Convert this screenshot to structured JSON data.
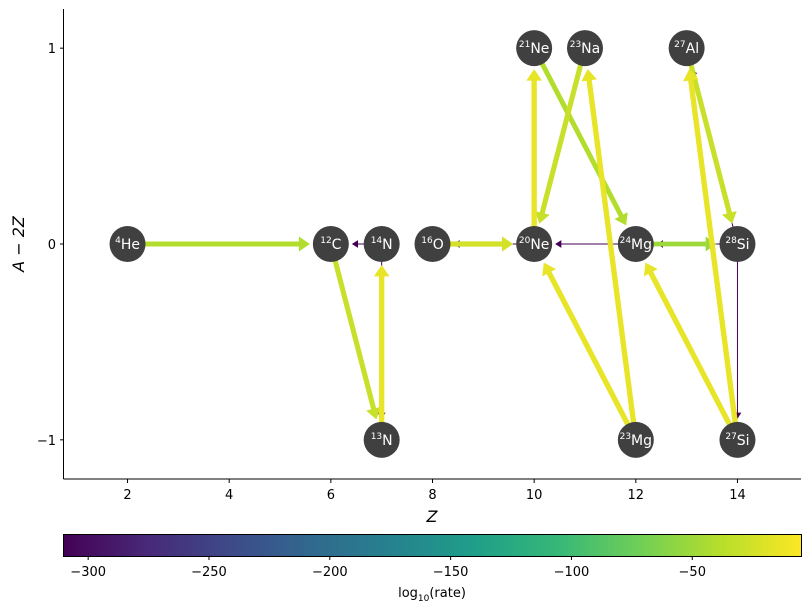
{
  "chart_data": {
    "type": "network",
    "xlabel": "Z",
    "ylabel": "A − 2Z",
    "xlim": [
      0.75,
      15.25
    ],
    "ylim": [
      -1.2,
      1.2
    ],
    "x_ticks": [
      2,
      4,
      6,
      8,
      10,
      12,
      14
    ],
    "y_ticks": [
      -1,
      0,
      1
    ],
    "x_tick_labels": [
      "2",
      "4",
      "6",
      "8",
      "10",
      "12",
      "14"
    ],
    "y_tick_labels": [
      "−1",
      "0",
      "1"
    ],
    "node_color": "#404040",
    "nodes": [
      {
        "id": "he4",
        "mass": "4",
        "sym": "He",
        "Z": 2,
        "y": 0
      },
      {
        "id": "c12",
        "mass": "12",
        "sym": "C",
        "Z": 6,
        "y": 0
      },
      {
        "id": "n14",
        "mass": "14",
        "sym": "N",
        "Z": 7,
        "y": 0
      },
      {
        "id": "n13",
        "mass": "13",
        "sym": "N",
        "Z": 7,
        "y": -1
      },
      {
        "id": "o16",
        "mass": "16",
        "sym": "O",
        "Z": 8,
        "y": 0
      },
      {
        "id": "ne20",
        "mass": "20",
        "sym": "Ne",
        "Z": 10,
        "y": 0
      },
      {
        "id": "ne21",
        "mass": "21",
        "sym": "Ne",
        "Z": 10,
        "y": 1
      },
      {
        "id": "na23",
        "mass": "23",
        "sym": "Na",
        "Z": 11,
        "y": 1
      },
      {
        "id": "mg24",
        "mass": "24",
        "sym": "Mg",
        "Z": 12,
        "y": 0
      },
      {
        "id": "mg23",
        "mass": "23",
        "sym": "Mg",
        "Z": 12,
        "y": -1
      },
      {
        "id": "al27",
        "mass": "27",
        "sym": "Al",
        "Z": 13,
        "y": 1
      },
      {
        "id": "si28",
        "mass": "28",
        "sym": "Si",
        "Z": 14,
        "y": 0
      },
      {
        "id": "si27",
        "mass": "27",
        "sym": "Si",
        "Z": 14,
        "y": -1
      }
    ],
    "links": [
      {
        "from": "he4",
        "to": "c12",
        "log10_rate": -40
      },
      {
        "from": "c12",
        "to": "n13",
        "log10_rate": -30
      },
      {
        "from": "n13",
        "to": "n14",
        "log10_rate": -15
      },
      {
        "from": "n14",
        "to": "n13",
        "log10_rate": -310
      },
      {
        "from": "n14",
        "to": "c12",
        "log10_rate": -310
      },
      {
        "from": "o16",
        "to": "ne20",
        "log10_rate": -25
      },
      {
        "from": "ne20",
        "to": "o16",
        "log10_rate": -310
      },
      {
        "from": "ne20",
        "to": "ne21",
        "log10_rate": -15
      },
      {
        "from": "ne21",
        "to": "mg24",
        "log10_rate": -40
      },
      {
        "from": "na23",
        "to": "ne20",
        "log10_rate": -30
      },
      {
        "from": "mg23",
        "to": "na23",
        "log10_rate": -15
      },
      {
        "from": "mg23",
        "to": "ne20",
        "log10_rate": -15
      },
      {
        "from": "mg24",
        "to": "ne20",
        "log10_rate": -310
      },
      {
        "from": "mg24",
        "to": "si28",
        "log10_rate": -50
      },
      {
        "from": "si28",
        "to": "mg24",
        "log10_rate": -310
      },
      {
        "from": "al27",
        "to": "si28",
        "log10_rate": -30
      },
      {
        "from": "si28",
        "to": "al27",
        "log10_rate": -310
      },
      {
        "from": "si28",
        "to": "si27",
        "log10_rate": -310
      },
      {
        "from": "si27",
        "to": "al27",
        "log10_rate": -15
      },
      {
        "from": "si27",
        "to": "mg24",
        "log10_rate": -15
      }
    ],
    "colorbar": {
      "label": "log₁₀(rate)",
      "label_prefix": "log",
      "label_sub": "10",
      "label_suffix": "(rate)",
      "range": [
        -310,
        -5
      ],
      "ticks": [
        -300,
        -250,
        -200,
        -150,
        -100,
        -50
      ],
      "tick_labels": [
        "−300",
        "−250",
        "−200",
        "−150",
        "−100",
        "−50"
      ],
      "colormap": "viridis",
      "stops": [
        "#440154",
        "#482878",
        "#3e4989",
        "#31688e",
        "#26828e",
        "#1f9e89",
        "#35b779",
        "#6ece58",
        "#b5de2b",
        "#fde725"
      ]
    }
  }
}
